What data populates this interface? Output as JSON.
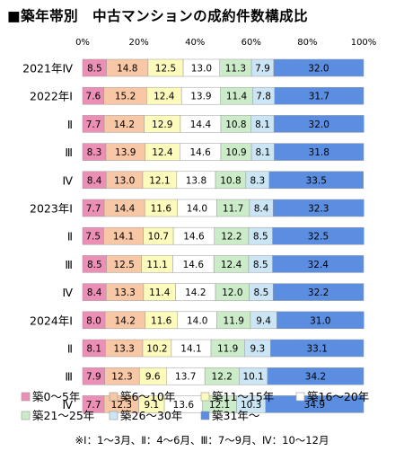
{
  "title": "■築年帯別　中古マンションの成約件数構成比",
  "note": "※Ⅰ：1～3月、Ⅱ：4～6月、Ⅲ：7～9月、Ⅳ：10～12月",
  "chart_data": {
    "type": "bar",
    "orientation": "horizontal",
    "stacked": true,
    "xlim": [
      0,
      100
    ],
    "x_ticks": [
      "0%",
      "20%",
      "40%",
      "60%",
      "80%",
      "100%"
    ],
    "categories": [
      "2021年Ⅳ",
      "2022年Ⅰ",
      "Ⅱ",
      "Ⅲ",
      "Ⅳ",
      "2023年Ⅰ",
      "Ⅱ",
      "Ⅲ",
      "Ⅳ",
      "2024年Ⅰ",
      "Ⅱ",
      "Ⅲ",
      "Ⅳ"
    ],
    "legend_position": "bottom",
    "series": [
      {
        "name": "築0～5年",
        "color": "#ec8fb6",
        "values": [
          8.5,
          7.6,
          7.7,
          8.3,
          8.4,
          7.7,
          7.5,
          8.5,
          8.4,
          8.0,
          8.1,
          7.9,
          7.7
        ]
      },
      {
        "name": "築6～10年",
        "color": "#f8c7a5",
        "values": [
          14.8,
          15.2,
          14.2,
          13.9,
          13.0,
          14.4,
          14.1,
          12.5,
          13.3,
          14.2,
          13.3,
          12.3,
          12.3
        ]
      },
      {
        "name": "築11～15年",
        "color": "#fdfbbb",
        "values": [
          12.5,
          12.4,
          12.9,
          12.4,
          12.1,
          11.6,
          10.7,
          11.1,
          11.4,
          11.6,
          10.2,
          9.6,
          9.1
        ]
      },
      {
        "name": "築16～20年",
        "color": "#ffffff",
        "values": [
          13.0,
          13.9,
          14.4,
          14.6,
          13.8,
          14.0,
          14.6,
          14.6,
          14.2,
          14.0,
          14.1,
          13.7,
          13.6
        ]
      },
      {
        "name": "築21～25年",
        "color": "#ccecc9",
        "values": [
          11.3,
          11.4,
          10.8,
          10.9,
          10.8,
          11.7,
          12.2,
          12.4,
          12.0,
          11.9,
          11.9,
          12.2,
          12.1
        ]
      },
      {
        "name": "築26～30年",
        "color": "#cbe5f5",
        "values": [
          7.9,
          7.8,
          8.1,
          8.1,
          8.3,
          8.4,
          8.5,
          8.5,
          8.5,
          9.4,
          9.3,
          10.1,
          10.3
        ]
      },
      {
        "name": "築31年～",
        "color": "#5b8ee0",
        "values": [
          32.0,
          31.7,
          32.0,
          31.8,
          33.5,
          32.3,
          32.5,
          32.4,
          32.2,
          31.0,
          33.1,
          34.2,
          34.9
        ]
      }
    ]
  }
}
